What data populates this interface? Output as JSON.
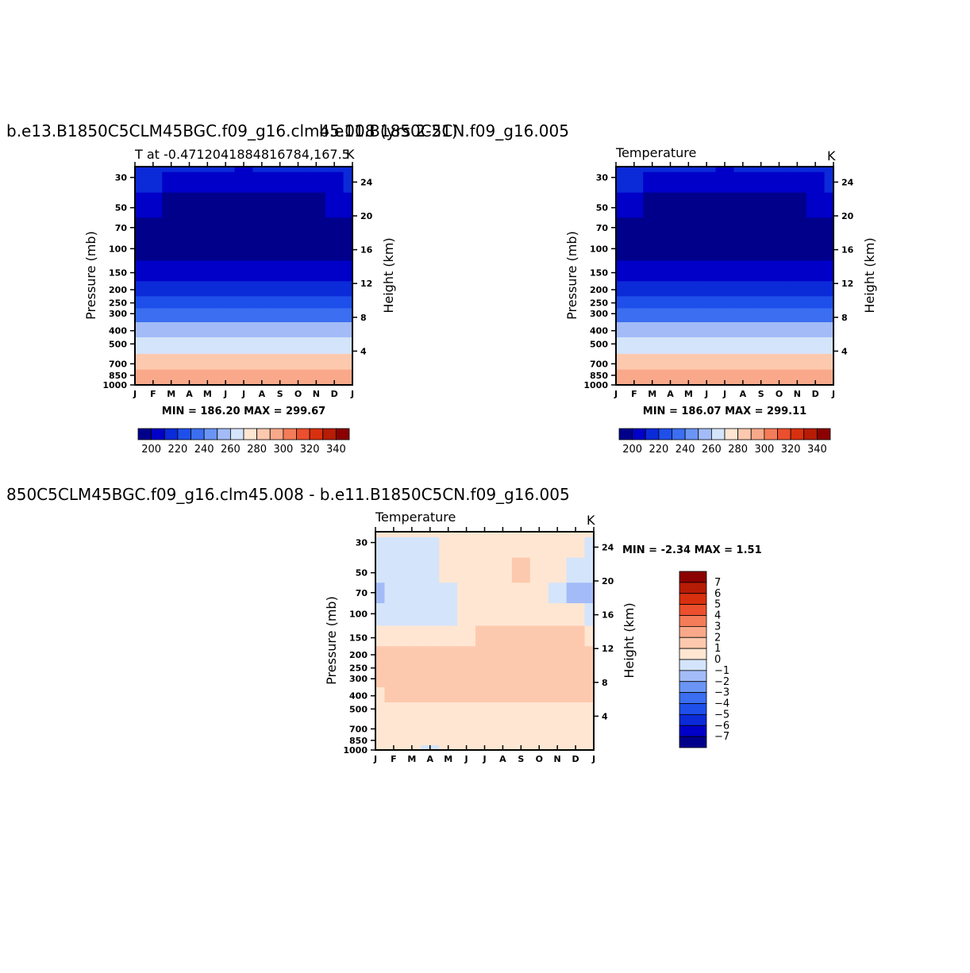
{
  "titles": {
    "left_main": "b.e13.B1850C5CLM45BGC.f09_g16.clm45.008 (yrs 2-21)",
    "right_main": "b.e11.B1850C5CN.f09_g16.005",
    "diff_main": "850C5CLM45BGC.f09_g16.clm45.008 - b.e11.B1850C5CN.f09_g16.005"
  },
  "colors": {
    "levels": [
      "#00008b",
      "#0000c8",
      "#0b2ad8",
      "#1f4fea",
      "#3b6ef0",
      "#6b95f4",
      "#a3bcf8",
      "#d4e4fb",
      "#fee6d2",
      "#fdc9ae",
      "#f9a98a",
      "#f47c58",
      "#eb4f2d",
      "#d8300e",
      "#b71c05",
      "#8b0000"
    ]
  },
  "panels": [
    {
      "id": "left",
      "subtitle": "T at -0.4712041884816784,167.5",
      "units": "K",
      "ylabel": "Pressure (mb)",
      "y2label": "Height (km)",
      "minmax": "MIN =  186.20  MAX =  299.67"
    },
    {
      "id": "right",
      "subtitle": "Temperature",
      "units": "K",
      "ylabel": "Pressure (mb)",
      "y2label": "Height (km)",
      "minmax": "MIN =  186.07  MAX =  299.11"
    },
    {
      "id": "diff",
      "subtitle": "Temperature",
      "units": "K",
      "ylabel": "Pressure (mb)",
      "y2label": "Height (km)",
      "minmax": "MIN =   -2.34  MAX =     1.51"
    }
  ],
  "chart_data": [
    {
      "type": "heatmap",
      "title": "b.e13.B1850C5CLM45BGC.f09_g16.clm45.008 (yrs 2-21)",
      "subtitle": "T at -0.4712041884816784,167.5",
      "units": "K",
      "xlabel": "",
      "x": [
        "J",
        "F",
        "M",
        "A",
        "M",
        "J",
        "J",
        "A",
        "S",
        "O",
        "N",
        "D",
        "J"
      ],
      "ylabel": "Pressure (mb)",
      "y_ticks": [
        30,
        50,
        70,
        100,
        150,
        200,
        250,
        300,
        400,
        500,
        700,
        850,
        1000
      ],
      "y_scale": "log",
      "ylim": [
        25,
        1000
      ],
      "y2label": "Height (km)",
      "y2_ticks": [
        4,
        8,
        12,
        16,
        20,
        24
      ],
      "colorbar_levels": [
        195,
        200,
        205,
        210,
        215,
        220,
        225,
        230,
        235,
        240,
        245,
        250,
        255,
        260,
        265,
        270,
        275,
        280,
        285,
        290,
        295,
        300,
        305,
        310,
        315,
        320,
        325,
        330,
        335,
        340,
        345
      ],
      "colorbar_labels": [
        "200",
        "220",
        "240",
        "260",
        "280",
        "300",
        "320",
        "340"
      ],
      "levels": [
        25,
        30,
        50,
        70,
        100,
        150,
        200,
        250,
        300,
        400,
        500,
        700,
        850,
        1000
      ],
      "values": [
        [
          215,
          215,
          213,
          212,
          211,
          210,
          209,
          210,
          211,
          212,
          213,
          214,
          215
        ],
        [
          210,
          210,
          208,
          207,
          206,
          205,
          204,
          205,
          206,
          207,
          208,
          209,
          210
        ],
        [
          200,
          200,
          199,
          198,
          197,
          197,
          196,
          197,
          198,
          199,
          199,
          200,
          200
        ],
        [
          188,
          188,
          188,
          188,
          188,
          188,
          188,
          188,
          188,
          188,
          188,
          188,
          188
        ],
        [
          188,
          188,
          188,
          188,
          188,
          188,
          188,
          188,
          188,
          188,
          188,
          188,
          188
        ],
        [
          207,
          207,
          207,
          207,
          207,
          207,
          207,
          207,
          207,
          207,
          207,
          207,
          207
        ],
        [
          218,
          218,
          218,
          218,
          218,
          218,
          218,
          218,
          218,
          218,
          218,
          218,
          218
        ],
        [
          228,
          228,
          228,
          228,
          228,
          228,
          228,
          228,
          228,
          228,
          228,
          228,
          228
        ],
        [
          236,
          236,
          236,
          236,
          236,
          236,
          236,
          236,
          236,
          236,
          236,
          236,
          236
        ],
        [
          252,
          252,
          252,
          252,
          252,
          252,
          252,
          252,
          252,
          252,
          252,
          252,
          252
        ],
        [
          264,
          264,
          264,
          264,
          264,
          264,
          264,
          264,
          264,
          264,
          264,
          264,
          264
        ],
        [
          282,
          282,
          282,
          282,
          282,
          282,
          282,
          282,
          282,
          282,
          282,
          282,
          282
        ],
        [
          290,
          290,
          290,
          290,
          290,
          290,
          290,
          290,
          290,
          290,
          290,
          290,
          290
        ],
        [
          298,
          298,
          298,
          298,
          298,
          298,
          298,
          298,
          298,
          298,
          298,
          298,
          298
        ]
      ],
      "min": 186.2,
      "max": 299.67
    },
    {
      "type": "heatmap",
      "title": "b.e11.B1850C5CN.f09_g16.005",
      "subtitle": "Temperature",
      "units": "K",
      "xlabel": "",
      "x": [
        "J",
        "F",
        "M",
        "A",
        "M",
        "J",
        "J",
        "A",
        "S",
        "O",
        "N",
        "D",
        "J"
      ],
      "ylabel": "Pressure (mb)",
      "y_ticks": [
        30,
        50,
        70,
        100,
        150,
        200,
        250,
        300,
        400,
        500,
        700,
        850,
        1000
      ],
      "y_scale": "log",
      "ylim": [
        25,
        1000
      ],
      "y2label": "Height (km)",
      "y2_ticks": [
        4,
        8,
        12,
        16,
        20,
        24
      ],
      "colorbar_levels": [
        195,
        200,
        205,
        210,
        215,
        220,
        225,
        230,
        235,
        240,
        245,
        250,
        255,
        260,
        265,
        270,
        275,
        280,
        285,
        290,
        295,
        300,
        305,
        310,
        315,
        320,
        325,
        330,
        335,
        340,
        345
      ],
      "colorbar_labels": [
        "200",
        "220",
        "240",
        "260",
        "280",
        "300",
        "320",
        "340"
      ],
      "levels": [
        25,
        30,
        50,
        70,
        100,
        150,
        200,
        250,
        300,
        400,
        500,
        700,
        850,
        1000
      ],
      "values": [
        [
          215,
          215,
          213,
          212,
          211,
          210,
          209,
          210,
          211,
          212,
          213,
          214,
          215
        ],
        [
          210,
          210,
          208,
          207,
          206,
          205,
          204,
          205,
          206,
          207,
          208,
          209,
          210
        ],
        [
          200,
          200,
          199,
          198,
          197,
          197,
          196,
          197,
          198,
          199,
          199,
          200,
          200
        ],
        [
          188,
          188,
          188,
          188,
          188,
          188,
          188,
          188,
          188,
          188,
          188,
          188,
          188
        ],
        [
          188,
          188,
          188,
          188,
          188,
          188,
          188,
          188,
          188,
          188,
          188,
          188,
          188
        ],
        [
          207,
          207,
          207,
          207,
          207,
          207,
          207,
          207,
          207,
          207,
          207,
          207,
          207
        ],
        [
          218,
          218,
          218,
          218,
          218,
          218,
          218,
          218,
          218,
          218,
          218,
          218,
          218
        ],
        [
          228,
          228,
          228,
          228,
          228,
          228,
          228,
          228,
          228,
          228,
          228,
          228,
          228
        ],
        [
          236,
          236,
          236,
          236,
          236,
          236,
          236,
          236,
          236,
          236,
          236,
          236,
          236
        ],
        [
          252,
          252,
          252,
          252,
          252,
          252,
          252,
          252,
          252,
          252,
          252,
          252,
          252
        ],
        [
          264,
          264,
          264,
          264,
          264,
          264,
          264,
          264,
          264,
          264,
          264,
          264,
          264
        ],
        [
          282,
          282,
          282,
          282,
          282,
          282,
          282,
          282,
          282,
          282,
          282,
          282,
          282
        ],
        [
          290,
          290,
          290,
          290,
          290,
          290,
          290,
          290,
          290,
          290,
          290,
          290,
          290
        ],
        [
          297,
          297,
          297,
          297,
          297,
          297,
          297,
          297,
          297,
          297,
          297,
          297,
          297
        ]
      ],
      "min": 186.07,
      "max": 299.11
    },
    {
      "type": "heatmap",
      "title": "850C5CLM45BGC.f09_g16.clm45.008 - b.e11.B1850C5CN.f09_g16.005",
      "subtitle": "Temperature",
      "units": "K",
      "xlabel": "",
      "x": [
        "J",
        "F",
        "M",
        "A",
        "M",
        "J",
        "J",
        "A",
        "S",
        "O",
        "N",
        "D",
        "J"
      ],
      "ylabel": "Pressure (mb)",
      "y_ticks": [
        30,
        50,
        70,
        100,
        150,
        200,
        250,
        300,
        400,
        500,
        700,
        850,
        1000
      ],
      "y_scale": "log",
      "ylim": [
        25,
        1000
      ],
      "y2label": "Height (km)",
      "y2_ticks": [
        4,
        8,
        12,
        16,
        20,
        24
      ],
      "colorbar_levels": [
        -7,
        -6,
        -5,
        -4,
        -3,
        -2,
        -1,
        0,
        1,
        2,
        3,
        4,
        5,
        6,
        7
      ],
      "colorbar_labels": [
        "7",
        "6",
        "5",
        "4",
        "3",
        "2",
        "1",
        "0",
        "-1",
        "-2",
        "-3",
        "-4",
        "-5",
        "-6",
        "-7"
      ],
      "levels": [
        25,
        30,
        50,
        70,
        100,
        150,
        200,
        250,
        300,
        400,
        500,
        700,
        850,
        1000
      ],
      "values": [
        [
          0.3,
          0.2,
          0.3,
          0.4,
          0.3,
          0.2,
          0.3,
          0.3,
          0.4,
          0.3,
          0.2,
          0.2,
          0.3
        ],
        [
          -0.5,
          -0.3,
          -0.4,
          -0.3,
          0.2,
          0.3,
          0.4,
          0.4,
          0.3,
          0.2,
          0.3,
          0.1,
          -0.5
        ],
        [
          -0.8,
          -0.6,
          -0.7,
          -0.6,
          0.3,
          0.4,
          0.5,
          0.6,
          1.2,
          0.4,
          0.3,
          -0.5,
          -0.8
        ],
        [
          -1.3,
          -0.9,
          -0.8,
          -0.5,
          -0.3,
          0.3,
          0.4,
          0.5,
          0.5,
          0.3,
          -0.8,
          -1.1,
          -1.3
        ],
        [
          -0.6,
          -0.5,
          -0.4,
          -0.3,
          -0.8,
          0.3,
          0.5,
          0.6,
          0.6,
          0.6,
          0.4,
          0.3,
          -0.4
        ],
        [
          0.5,
          0.6,
          0.5,
          0.6,
          0.7,
          0.9,
          1.1,
          1.0,
          1.2,
          1.3,
          1.2,
          1.0,
          0.8
        ],
        [
          1.1,
          1.2,
          1.2,
          1.1,
          1.2,
          1.2,
          1.2,
          1.2,
          1.2,
          1.3,
          1.3,
          1.3,
          1.2
        ],
        [
          1.2,
          1.3,
          1.3,
          1.2,
          1.3,
          1.3,
          1.3,
          1.3,
          1.3,
          1.3,
          1.3,
          1.3,
          1.2
        ],
        [
          1.2,
          1.3,
          1.3,
          1.2,
          1.3,
          1.3,
          1.3,
          1.3,
          1.3,
          1.3,
          1.3,
          1.3,
          1.2
        ],
        [
          0.9,
          1.0,
          1.1,
          1.1,
          1.1,
          1.2,
          1.2,
          1.2,
          1.1,
          1.2,
          1.2,
          1.1,
          1.0
        ],
        [
          0.5,
          0.6,
          0.7,
          0.8,
          0.6,
          0.8,
          0.8,
          0.9,
          0.7,
          0.8,
          0.9,
          0.8,
          0.6
        ],
        [
          0.4,
          0.5,
          0.5,
          0.5,
          0.6,
          0.5,
          0.5,
          0.5,
          0.5,
          0.5,
          0.5,
          0.5,
          0.4
        ],
        [
          0.4,
          0.4,
          0.5,
          0.4,
          0.4,
          0.5,
          0.5,
          0.5,
          0.4,
          0.5,
          0.6,
          0.6,
          0.5
        ],
        [
          0.5,
          0.5,
          0.4,
          -0.3,
          0.3,
          0.4,
          0.5,
          0.4,
          0.6,
          0.7,
          0.8,
          0.5,
          0.5
        ]
      ],
      "min": -2.34,
      "max": 1.51
    }
  ]
}
